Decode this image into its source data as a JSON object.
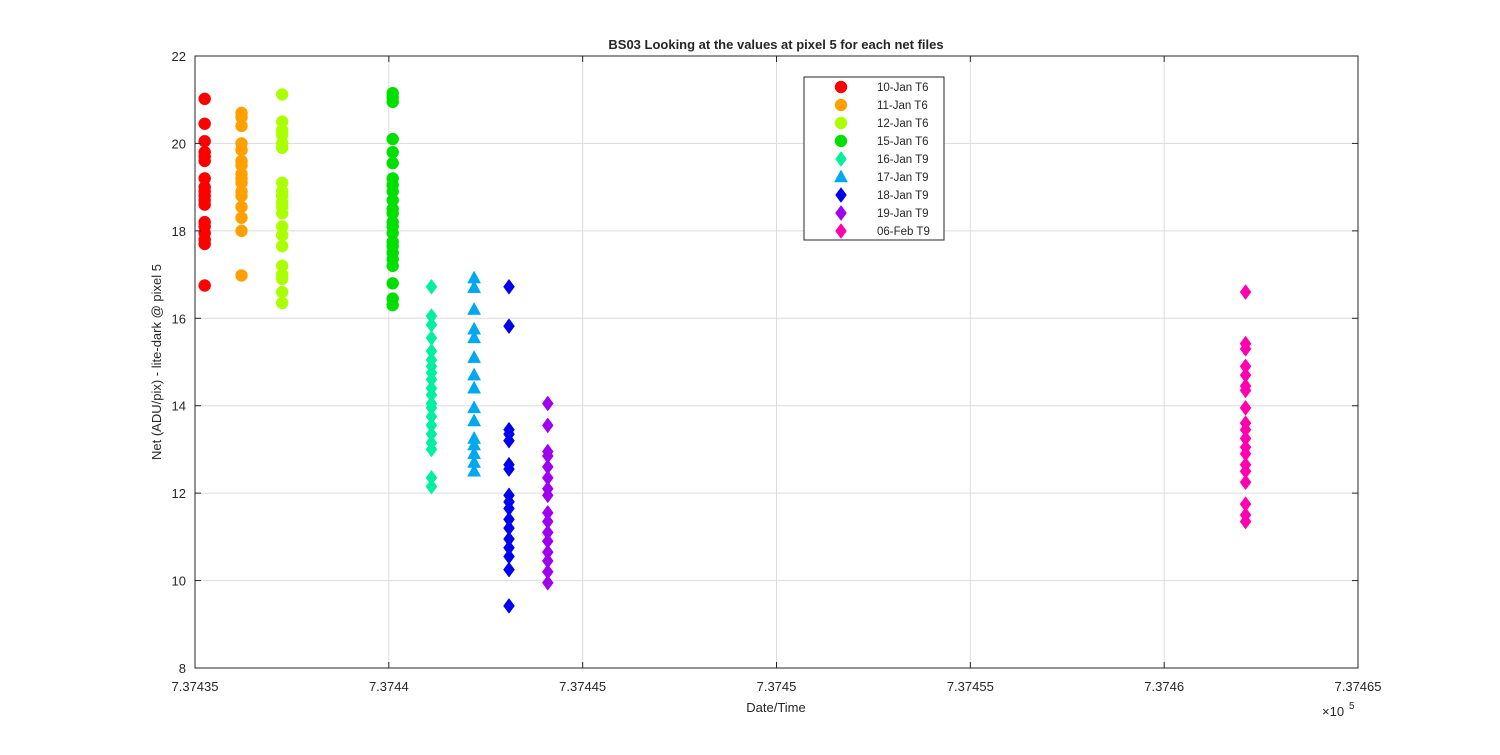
{
  "chart_data": {
    "type": "scatter",
    "title": "BS03  Looking at the values at pixel 5 for each net files",
    "xlabel": "Date/Time",
    "ylabel": "Net (ADU/pix) - lite-dark @ pixel 5",
    "x_exponent_label": "×10",
    "x_exponent_power": "5",
    "xlim": [
      737435,
      737465
    ],
    "ylim": [
      8,
      22
    ],
    "x_ticks": [
      737435,
      737440,
      737445,
      737450,
      737455,
      737460,
      737465
    ],
    "x_tick_labels": [
      "7.37435",
      "7.3744",
      "7.37445",
      "7.3745",
      "7.37455",
      "7.3746",
      "7.37465"
    ],
    "y_ticks": [
      8,
      10,
      12,
      14,
      16,
      18,
      20,
      22
    ],
    "y_tick_labels": [
      "8",
      "10",
      "12",
      "14",
      "16",
      "18",
      "20",
      "22"
    ],
    "grid": true,
    "legend_position": "top-center",
    "series": [
      {
        "name": "10-Jan T6",
        "marker": "circle",
        "color": "#ff0000",
        "x": 737435.25,
        "values": [
          16.75,
          17.7,
          17.8,
          17.95,
          18.1,
          18.2,
          18.6,
          18.7,
          18.8,
          18.9,
          19.0,
          19.2,
          19.6,
          19.7,
          19.8,
          20.05,
          20.45,
          21.02
        ]
      },
      {
        "name": "11-Jan T6",
        "marker": "circle",
        "color": "#ffa000",
        "x": 737436.2,
        "values": [
          16.98,
          18.0,
          18.3,
          18.55,
          18.8,
          18.9,
          19.1,
          19.2,
          19.3,
          19.5,
          19.6,
          19.85,
          20.0,
          20.4,
          20.6,
          20.7
        ]
      },
      {
        "name": "12-Jan T6",
        "marker": "circle",
        "color": "#aaff00",
        "x": 737437.25,
        "values": [
          16.35,
          16.6,
          16.9,
          17.0,
          17.2,
          17.65,
          17.9,
          18.1,
          18.4,
          18.55,
          18.65,
          18.8,
          18.9,
          19.1,
          19.9,
          20.0,
          20.2,
          20.3,
          20.5,
          21.12
        ]
      },
      {
        "name": "15-Jan T6",
        "marker": "circle",
        "color": "#00e000",
        "x": 737440.1,
        "values": [
          16.3,
          16.45,
          16.8,
          17.2,
          17.35,
          17.5,
          17.65,
          17.75,
          17.95,
          18.1,
          18.2,
          18.4,
          18.5,
          18.7,
          18.9,
          19.05,
          19.2,
          19.55,
          19.8,
          20.1,
          20.95,
          21.05,
          21.15
        ]
      },
      {
        "name": "16-Jan T9",
        "marker": "diamond",
        "color": "#00f0a0",
        "x": 737441.1,
        "values": [
          12.15,
          12.35,
          13.0,
          13.15,
          13.35,
          13.55,
          13.75,
          13.95,
          14.05,
          14.25,
          14.4,
          14.6,
          14.75,
          14.9,
          15.05,
          15.25,
          15.55,
          15.85,
          16.05,
          16.72
        ]
      },
      {
        "name": "17-Jan T9",
        "marker": "triangle",
        "color": "#00a8f0",
        "x": 737442.2,
        "values": [
          12.5,
          12.7,
          12.9,
          13.1,
          13.25,
          13.65,
          13.95,
          14.4,
          14.7,
          15.1,
          15.55,
          15.75,
          16.2,
          16.7,
          16.92
        ]
      },
      {
        "name": "18-Jan T9",
        "marker": "diamond",
        "color": "#0000ee",
        "x": 737443.1,
        "values": [
          9.42,
          10.25,
          10.55,
          10.75,
          10.95,
          11.2,
          11.4,
          11.65,
          11.8,
          11.95,
          12.55,
          12.65,
          13.2,
          13.35,
          13.45,
          15.82,
          16.72
        ]
      },
      {
        "name": "19-Jan T9",
        "marker": "diamond",
        "color": "#a000f0",
        "x": 737444.1,
        "values": [
          9.95,
          10.2,
          10.45,
          10.65,
          10.9,
          11.1,
          11.35,
          11.55,
          11.95,
          12.1,
          12.35,
          12.6,
          12.85,
          12.95,
          13.55,
          14.05
        ]
      },
      {
        "name": "06-Feb T9",
        "marker": "diamond",
        "color": "#ff00b0",
        "x": 737462.1,
        "values": [
          11.35,
          11.5,
          11.75,
          12.25,
          12.5,
          12.65,
          12.9,
          13.05,
          13.25,
          13.45,
          13.6,
          13.95,
          14.35,
          14.45,
          14.7,
          14.9,
          15.3,
          15.42,
          16.6
        ]
      }
    ]
  }
}
